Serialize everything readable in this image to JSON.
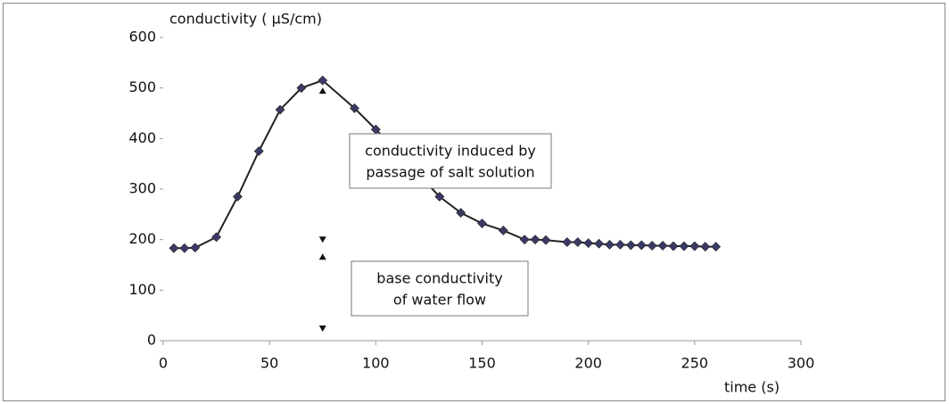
{
  "chart_data": {
    "type": "line",
    "y_label": "conductivity ( µS/cm)",
    "x_label": "time (s)",
    "x": [
      5,
      10,
      15,
      25,
      35,
      45,
      55,
      65,
      75,
      90,
      100,
      130,
      140,
      150,
      160,
      170,
      175,
      180,
      190,
      195,
      200,
      205,
      210,
      215,
      220,
      225,
      230,
      235,
      240,
      245,
      250,
      255,
      260
    ],
    "series": [
      {
        "color": "#222",
        "marker_color": "#3a3a66",
        "values": [
          183,
          183,
          184,
          205,
          285,
          375,
          457,
          500,
          515,
          460,
          418,
          285,
          253,
          232,
          218,
          200,
          200,
          199,
          195,
          195,
          193,
          192,
          190,
          190,
          189,
          189,
          188,
          188,
          187,
          187,
          187,
          186,
          186
        ]
      }
    ],
    "xlim": [
      0,
      300
    ],
    "xticks": [
      0,
      50,
      100,
      150,
      200,
      250,
      300
    ],
    "ylim": [
      0,
      600
    ],
    "yticks": [
      0,
      100,
      200,
      300,
      400,
      500,
      600
    ],
    "annotations": [
      {
        "lines": [
          "conductivity induced by",
          "passage of salt solution"
        ]
      },
      {
        "lines": [
          "base conductivity",
          "of water flow"
        ]
      }
    ]
  }
}
